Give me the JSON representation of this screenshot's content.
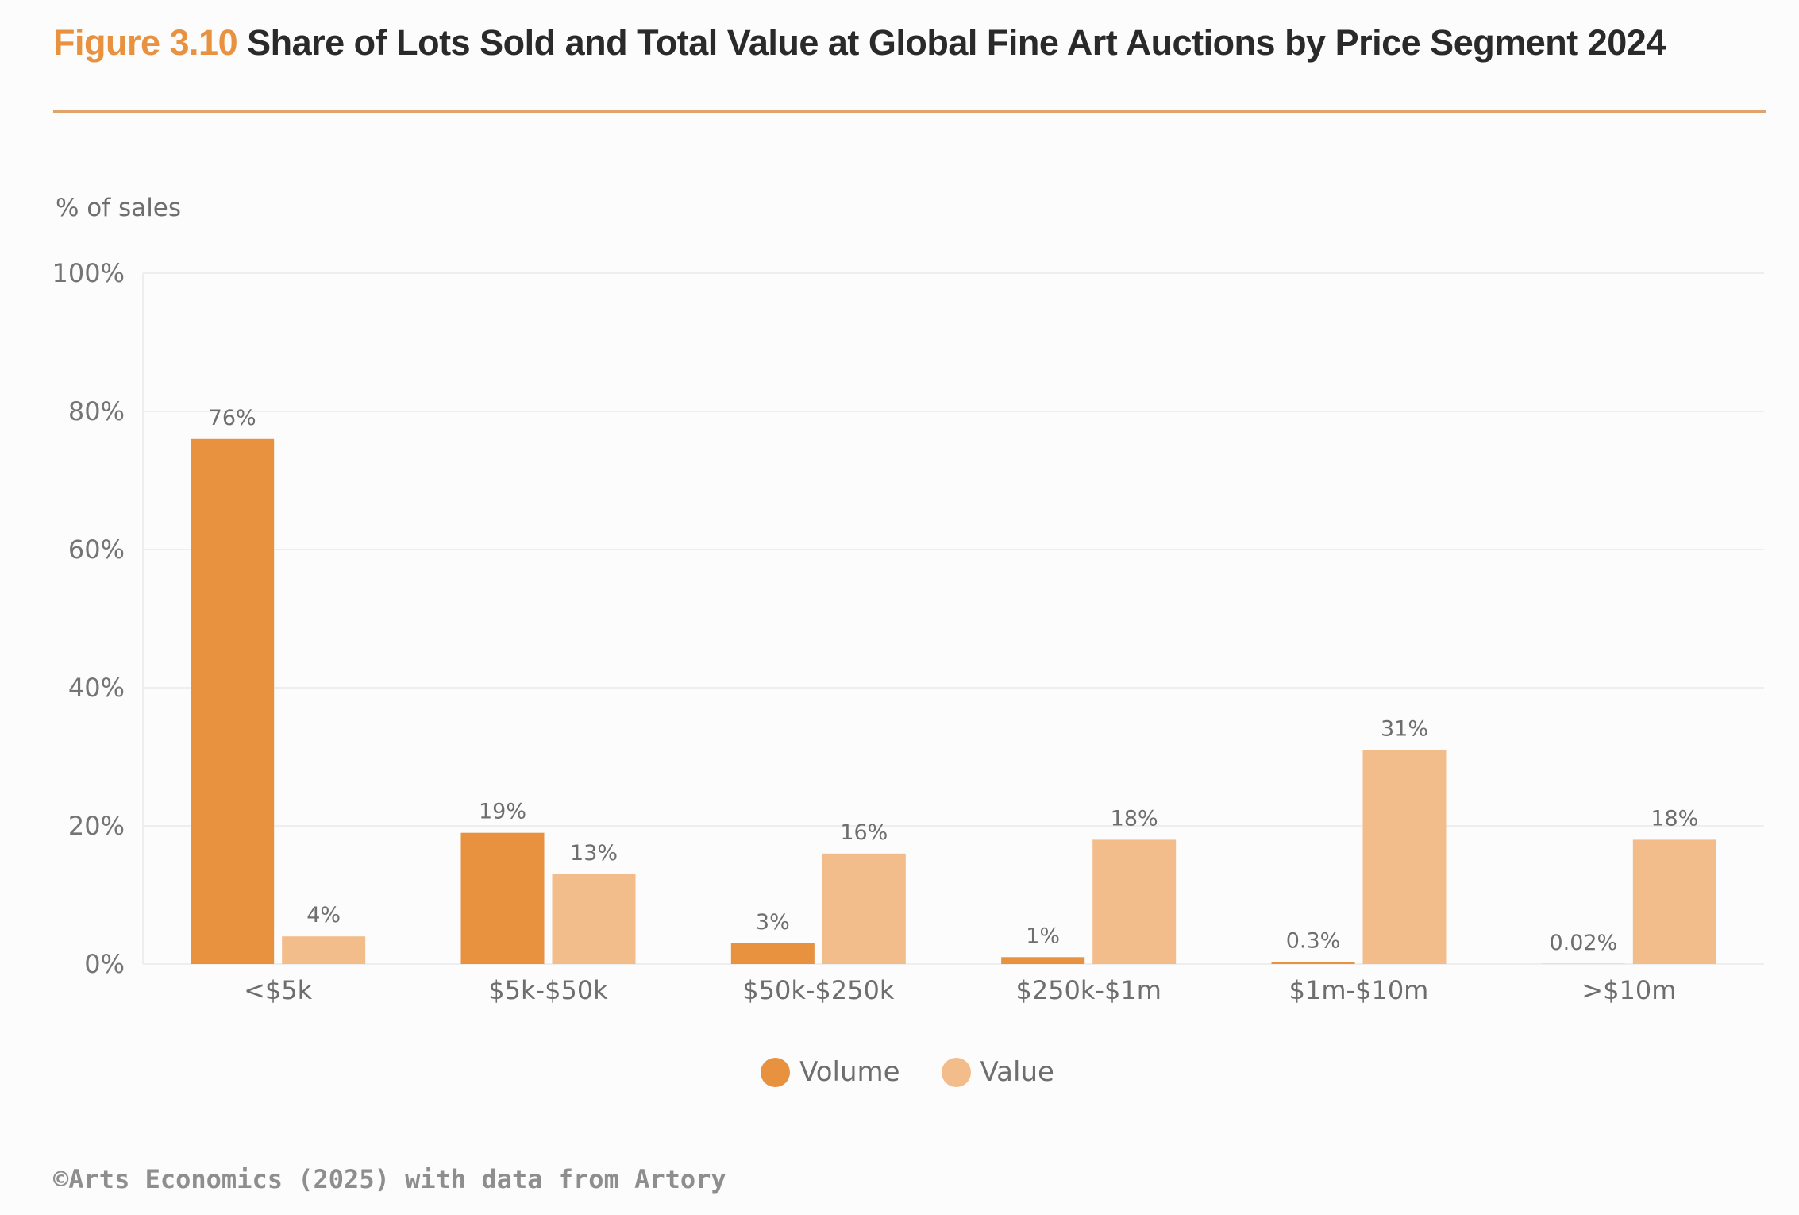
{
  "header": {
    "figure_number": "Figure 3.10",
    "title": "Share of Lots Sold and Total Value at Global Fine Art Auctions by Price Segment 2024"
  },
  "colors": {
    "accent": "#e8913f",
    "volume": "#e8913f",
    "value": "#f2bd8b",
    "gridline": "#eeeeee",
    "text": "#6e6e6e"
  },
  "chart_data": {
    "type": "bar",
    "title": "Share of Lots Sold and Total Value at Global Fine Art Auctions by Price Segment 2024",
    "xlabel": "",
    "ylabel": "% of sales",
    "ylim": [
      0,
      100
    ],
    "yticks": [
      0,
      20,
      40,
      60,
      80,
      100
    ],
    "ytick_labels": [
      "0%",
      "20%",
      "40%",
      "60%",
      "80%",
      "100%"
    ],
    "grid": true,
    "legend_position": "bottom-center",
    "categories": [
      "<$5k",
      "$5k-$50k",
      "$50k-$250k",
      "$250k-$1m",
      "$1m-$10m",
      ">$10m"
    ],
    "series": [
      {
        "name": "Volume",
        "color": "#e8913f",
        "values": [
          76,
          19,
          3,
          1,
          0.3,
          0.02
        ],
        "labels": [
          "76%",
          "19%",
          "3%",
          "1%",
          "0.3%",
          "0.02%"
        ]
      },
      {
        "name": "Value",
        "color": "#f2bd8b",
        "values": [
          4,
          13,
          16,
          18,
          31,
          18
        ],
        "labels": [
          "4%",
          "13%",
          "16%",
          "18%",
          "31%",
          "18%"
        ]
      }
    ]
  },
  "footer": {
    "source": "©Arts Economics (2025) with data from Artory"
  }
}
